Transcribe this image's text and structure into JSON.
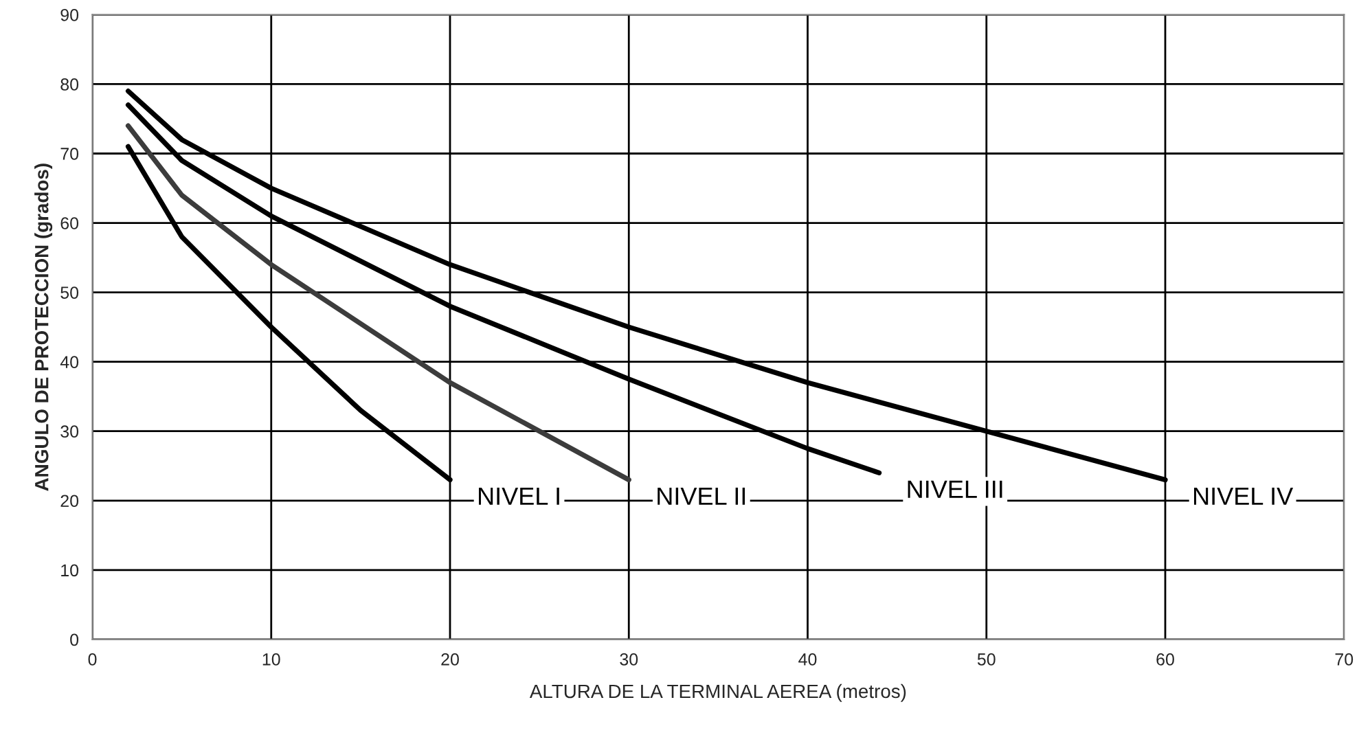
{
  "chart_data": {
    "type": "line",
    "xlabel": "ALTURA DE LA TERMINAL AEREA (metros)",
    "ylabel": "ANGULO DE PROTECCION (grados)",
    "xlim": [
      0,
      70
    ],
    "xticks": [
      0,
      10,
      20,
      30,
      40,
      50,
      60,
      70
    ],
    "ylim": [
      0,
      90
    ],
    "yticks": [
      0,
      10,
      20,
      30,
      40,
      50,
      60,
      70,
      80,
      90
    ],
    "grid": true,
    "line_style": "solid",
    "series": [
      {
        "name": "NIVEL I",
        "color": "#000000",
        "x": [
          2,
          5,
          10,
          15,
          20
        ],
        "values": [
          71,
          58,
          45,
          33,
          23
        ]
      },
      {
        "name": "NIVEL II",
        "color": "#3c3c3c",
        "x": [
          2,
          5,
          10,
          20,
          30
        ],
        "values": [
          74,
          64,
          54,
          37,
          23
        ]
      },
      {
        "name": "NIVEL III",
        "color": "#000000",
        "x": [
          2,
          5,
          10,
          20,
          30,
          40,
          44
        ],
        "values": [
          77,
          69,
          61,
          48,
          37.5,
          27.5,
          24
        ]
      },
      {
        "name": "NIVEL IV",
        "color": "#000000",
        "x": [
          2,
          5,
          10,
          20,
          30,
          40,
          50,
          60
        ],
        "values": [
          79,
          72,
          65,
          54,
          45,
          37,
          30,
          23
        ]
      }
    ]
  }
}
